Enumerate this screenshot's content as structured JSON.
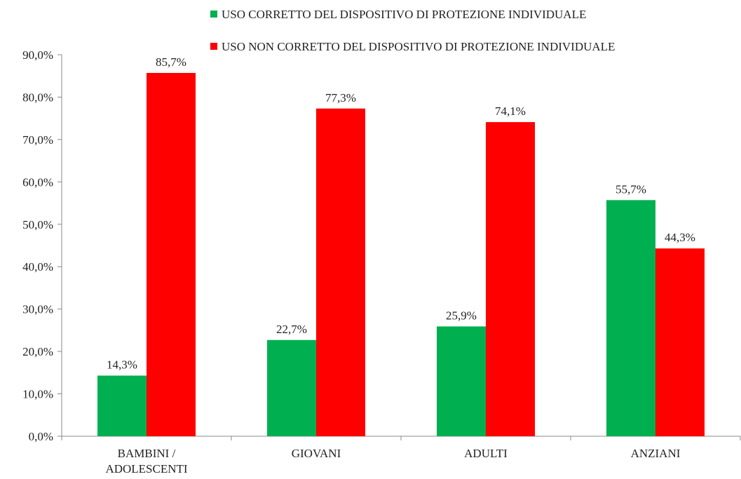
{
  "chart_data": {
    "type": "bar",
    "categories": [
      "BAMBINI / ADOLESCENTI",
      "GIOVANI",
      "ADULTI",
      "ANZIANI"
    ],
    "series": [
      {
        "name": "USO CORRETTO DEL DISPOSITIVO DI PROTEZIONE INDIVIDUALE",
        "color": "#00b050",
        "values": [
          14.3,
          22.7,
          25.9,
          55.7
        ],
        "value_labels": [
          "14,3%",
          "22,7%",
          "25,9%",
          "55,7%"
        ]
      },
      {
        "name": "USO NON CORRETTO DEL DISPOSITIVO DI PROTEZIONE INDIVIDUALE",
        "color": "#ff0000",
        "values": [
          85.7,
          77.3,
          74.1,
          44.3
        ],
        "value_labels": [
          "85,7%",
          "77,3%",
          "74,1%",
          "44,3%"
        ]
      }
    ],
    "ylim": [
      0,
      90
    ],
    "yticks": [
      {
        "value": 0,
        "label": "0,0%"
      },
      {
        "value": 10,
        "label": "10,0%"
      },
      {
        "value": 20,
        "label": "20,0%"
      },
      {
        "value": 30,
        "label": "30,0%"
      },
      {
        "value": 40,
        "label": "40,0%"
      },
      {
        "value": 50,
        "label": "50,0%"
      },
      {
        "value": 60,
        "label": "60,0%"
      },
      {
        "value": 70,
        "label": "70,0%"
      },
      {
        "value": 80,
        "label": "80,0%"
      },
      {
        "value": 90,
        "label": "90,0%"
      }
    ],
    "legend": "top",
    "grid": false
  }
}
